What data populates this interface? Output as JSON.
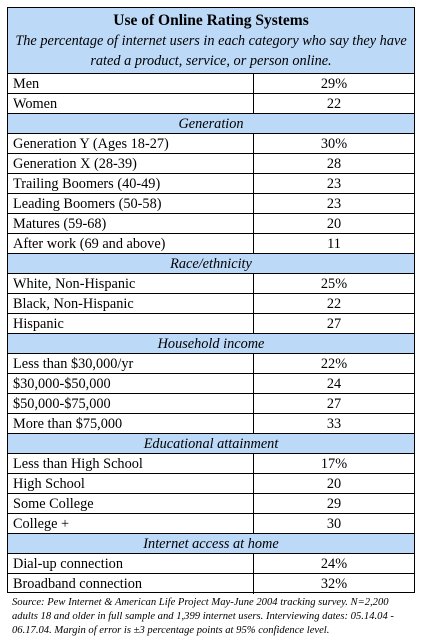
{
  "chart_data": {
    "type": "table",
    "title": "Use of Online Rating Systems",
    "subtitle": "The percentage of internet users in each category who say they have rated a product, service, or person online.",
    "rows": [
      {
        "kind": "row",
        "label": "Men",
        "value": "29%"
      },
      {
        "kind": "row",
        "label": "Women",
        "value": "22"
      },
      {
        "kind": "section",
        "label": "Generation"
      },
      {
        "kind": "row",
        "label": "Generation Y (Ages 18-27)",
        "value": "30%"
      },
      {
        "kind": "row",
        "label": "Generation X (28-39)",
        "value": "28"
      },
      {
        "kind": "row",
        "label": "Trailing Boomers (40-49)",
        "value": "23"
      },
      {
        "kind": "row",
        "label": "Leading Boomers (50-58)",
        "value": "23"
      },
      {
        "kind": "row",
        "label": "Matures (59-68)",
        "value": "20"
      },
      {
        "kind": "row",
        "label": "After work (69 and above)",
        "value": "11"
      },
      {
        "kind": "section",
        "label": "Race/ethnicity"
      },
      {
        "kind": "row",
        "label": "White, Non-Hispanic",
        "value": "25%"
      },
      {
        "kind": "row",
        "label": "Black, Non-Hispanic",
        "value": "22"
      },
      {
        "kind": "row",
        "label": "Hispanic",
        "value": "27"
      },
      {
        "kind": "section",
        "label": "Household income"
      },
      {
        "kind": "row",
        "label": "Less than $30,000/yr",
        "value": "22%"
      },
      {
        "kind": "row",
        "label": "$30,000-$50,000",
        "value": "24"
      },
      {
        "kind": "row",
        "label": "$50,000-$75,000",
        "value": "27"
      },
      {
        "kind": "row",
        "label": "More than $75,000",
        "value": "33"
      },
      {
        "kind": "section",
        "label": "Educational attainment"
      },
      {
        "kind": "row",
        "label": "Less than High School",
        "value": "17%"
      },
      {
        "kind": "row",
        "label": "High School",
        "value": "20"
      },
      {
        "kind": "row",
        "label": "Some College",
        "value": "29"
      },
      {
        "kind": "row",
        "label": "College +",
        "value": "30"
      },
      {
        "kind": "section",
        "label": "Internet access at home"
      },
      {
        "kind": "row",
        "label": "Dial-up connection",
        "value": "24%"
      },
      {
        "kind": "row",
        "label": "Broadband connection",
        "value": "32%"
      }
    ],
    "source": "Source:  Pew Internet & American Life Project May-June 2004 tracking survey. N=2,200 adults 18 and older in full sample and 1,399 internet users. Interviewing dates: 05.14.04 - 06.17.04. Margin of error is ±3 percentage points at 95% confidence level."
  },
  "colors": {
    "header_fill": "#bcd9f7",
    "border": "#000000"
  }
}
